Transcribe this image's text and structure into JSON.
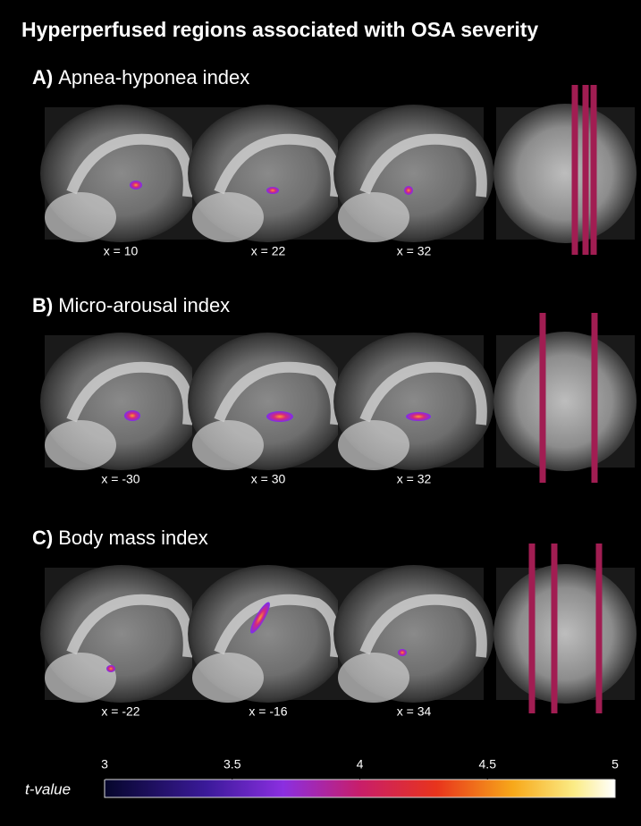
{
  "title": "Hyperperfused regions associated with OSA severity",
  "panels": [
    {
      "letter": "A)",
      "name": "Apnea-hyponea index",
      "slices": [
        "x = 10",
        "x = 22",
        "x = 32"
      ]
    },
    {
      "letter": "B)",
      "name": "Micro-arousal index",
      "slices": [
        "x = -30",
        "x = 30",
        "x = 32"
      ]
    },
    {
      "letter": "C)",
      "name": "Body mass index",
      "slices": [
        "x = -22",
        "x = -16",
        "x = 34"
      ]
    }
  ],
  "colorbar": {
    "label": "t-value",
    "range": [
      3,
      5
    ],
    "ticks": [
      3,
      3.5,
      4,
      4.5,
      5
    ]
  }
}
